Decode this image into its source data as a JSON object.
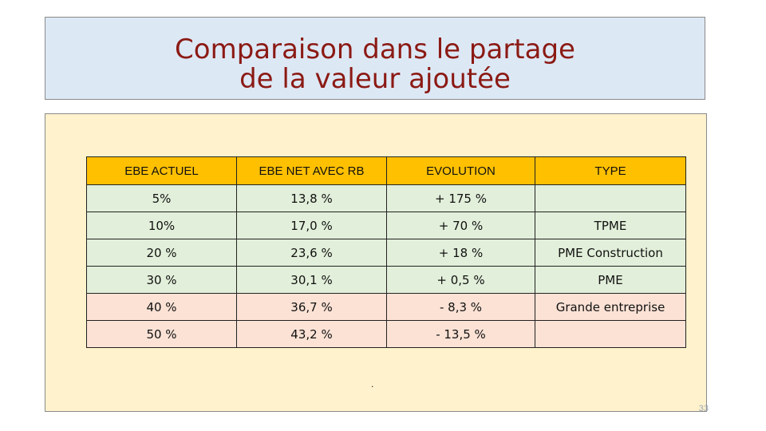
{
  "title": {
    "line1": "Comparaison dans le partage",
    "line2": "de la valeur ajoutée"
  },
  "table": {
    "headers": [
      "EBE ACTUEL",
      "EBE NET AVEC RB",
      "EVOLUTION",
      "TYPE"
    ],
    "rows": [
      {
        "ebe_actuel": "5%",
        "ebe_net": "13,8 %",
        "evolution": "+ 175 %",
        "type": ""
      },
      {
        "ebe_actuel": "10%",
        "ebe_net": "17,0 %",
        "evolution": "+ 70 %",
        "type": "TPME"
      },
      {
        "ebe_actuel": "20 %",
        "ebe_net": "23,6 %",
        "evolution": "+ 18 %",
        "type": "PME Construction"
      },
      {
        "ebe_actuel": "30 %",
        "ebe_net": "30,1 %",
        "evolution": "+ 0,5 %",
        "type": "PME"
      },
      {
        "ebe_actuel": "40 %",
        "ebe_net": "36,7 %",
        "evolution": "- 8,3 %",
        "type": "Grande entreprise"
      },
      {
        "ebe_actuel": "50 %",
        "ebe_net": "43,2 %",
        "evolution": "- 13,5 %",
        "type": ""
      }
    ]
  },
  "dot": ".",
  "page_number": "33",
  "colors": {
    "title_bg": "#dde8f5",
    "title_text": "#8b1a14",
    "content_bg": "#fff2cc",
    "header_bg": "#ffc000",
    "row_green": "#e2efda",
    "row_pink": "#fbe2d5"
  }
}
